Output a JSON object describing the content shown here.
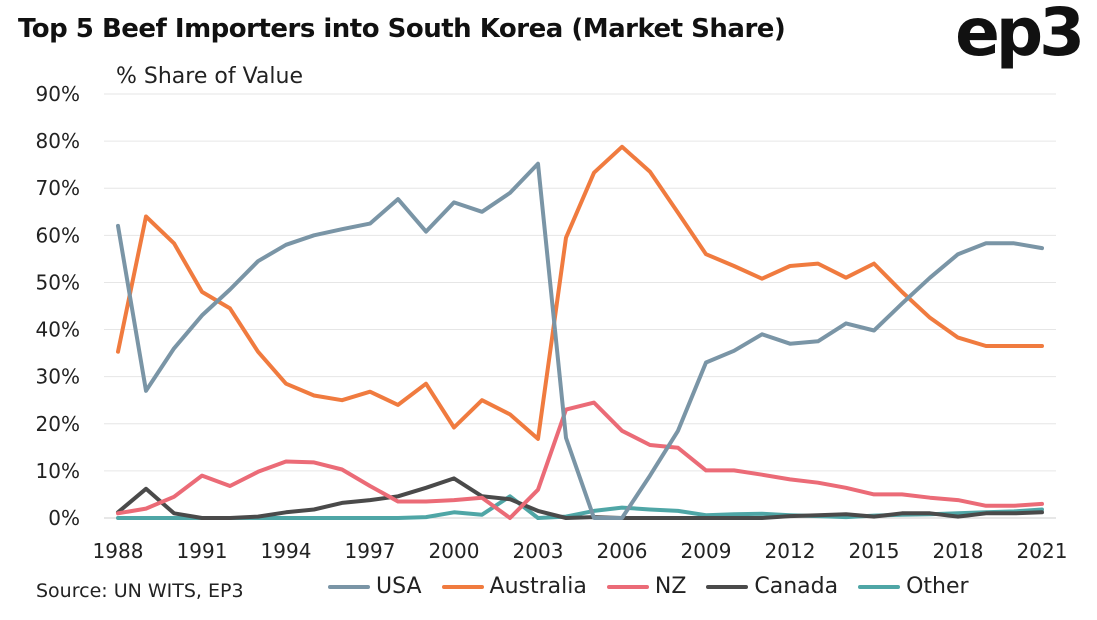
{
  "header": {
    "title": "Top 5 Beef Importers into South Korea (Market Share)",
    "logo_text": "ep3"
  },
  "footer": {
    "source": "Source: UN WITS, EP3"
  },
  "chart_data": {
    "type": "line",
    "title": "Top 5 Beef Importers into South Korea (Market Share)",
    "ylabel": "% Share of Value",
    "xlabel": "",
    "ylim": [
      0,
      90
    ],
    "yticks": [
      0,
      10,
      20,
      30,
      40,
      50,
      60,
      70,
      80,
      90
    ],
    "ytick_labels": [
      "0%",
      "10%",
      "20%",
      "30%",
      "40%",
      "50%",
      "60%",
      "70%",
      "80%",
      "90%"
    ],
    "xticks": [
      1988,
      1991,
      1994,
      1997,
      2000,
      2003,
      2006,
      2009,
      2012,
      2015,
      2018,
      2021
    ],
    "xtick_labels": [
      "1988",
      "1991",
      "1994",
      "1997",
      "2000",
      "2003",
      "2006",
      "2009",
      "2012",
      "2015",
      "2018",
      "2021"
    ],
    "grid": true,
    "legend_position": "bottom",
    "x": [
      1988,
      1989,
      1990,
      1991,
      1992,
      1993,
      1994,
      1995,
      1996,
      1997,
      1998,
      1999,
      2000,
      2001,
      2002,
      2003,
      2004,
      2005,
      2006,
      2007,
      2008,
      2009,
      2010,
      2011,
      2012,
      2013,
      2014,
      2015,
      2016,
      2017,
      2018,
      2019,
      2020,
      2021
    ],
    "series": [
      {
        "name": "USA",
        "color": "#7a95a6",
        "values": [
          62,
          27,
          36,
          43,
          48.5,
          54.5,
          58,
          60,
          61.3,
          62.5,
          67.7,
          60.8,
          67,
          65,
          69,
          75.2,
          17,
          0,
          0,
          9,
          18.5,
          33,
          35.5,
          39,
          37,
          37.5,
          41.3,
          39.8,
          45.5,
          51,
          56,
          58.3,
          58.3,
          57.3
        ]
      },
      {
        "name": "Australia",
        "color": "#f07b3f",
        "values": [
          35.3,
          64,
          58.3,
          48,
          44.5,
          35.3,
          28.5,
          26,
          25,
          26.8,
          24,
          28.5,
          19.2,
          25,
          22,
          16.8,
          59.5,
          73.3,
          78.8,
          73.5,
          64.8,
          56,
          53.5,
          50.8,
          53.5,
          54,
          51,
          54,
          48,
          42.5,
          38.3,
          36.5,
          36.5,
          36.5
        ]
      },
      {
        "name": "NZ",
        "color": "#eb6b77",
        "values": [
          1,
          2,
          4.5,
          9,
          6.8,
          9.8,
          12,
          11.8,
          10.3,
          6.8,
          3.5,
          3.5,
          3.8,
          4.3,
          0,
          6,
          23,
          24.5,
          18.5,
          15.5,
          14.9,
          10.1,
          10.1,
          9.2,
          8.2,
          7.5,
          6.4,
          5,
          5,
          4.3,
          3.8,
          2.6,
          2.6,
          3
        ]
      },
      {
        "name": "Canada",
        "color": "#4a4a4a",
        "values": [
          1.2,
          6.2,
          1,
          0,
          0,
          0.3,
          1.2,
          1.8,
          3.2,
          3.8,
          4.6,
          6.4,
          8.4,
          4.6,
          4,
          1.5,
          0,
          0.2,
          0,
          0,
          0,
          0,
          0,
          0,
          0.4,
          0.6,
          0.8,
          0.3,
          1,
          1,
          0.3,
          1,
          1,
          1.2
        ]
      },
      {
        "name": "Other",
        "color": "#4fa6a6",
        "values": [
          0,
          0,
          0,
          0,
          0,
          0,
          0,
          0,
          0,
          0,
          0,
          0.2,
          1.2,
          0.7,
          4.6,
          0,
          0.3,
          1.5,
          2.2,
          1.8,
          1.5,
          0.6,
          0.8,
          0.9,
          0.6,
          0.4,
          0.2,
          0.5,
          0.7,
          0.8,
          1,
          1.2,
          1.4,
          1.8
        ]
      }
    ]
  }
}
